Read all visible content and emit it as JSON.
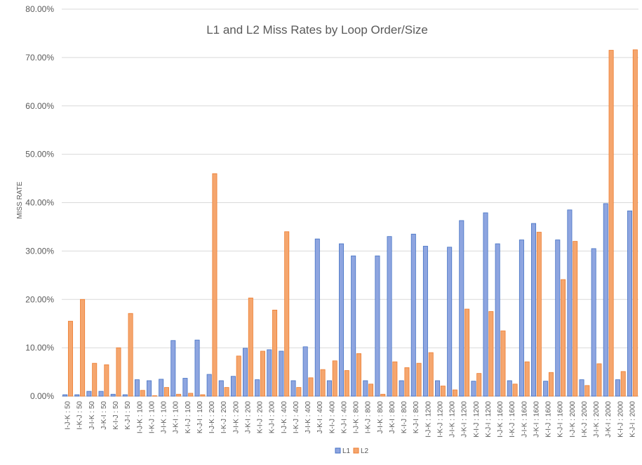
{
  "chart_data": {
    "type": "bar",
    "title": "L1 and L2 Miss Rates by Loop Order/Size",
    "xlabel": "",
    "ylabel": "MISS RATE",
    "ylim": [
      0,
      0.8
    ],
    "y_tick_labels": [
      "0.00%",
      "10.00%",
      "20.00%",
      "30.00%",
      "40.00%",
      "50.00%",
      "60.00%",
      "70.00%",
      "80.00%"
    ],
    "grid": "horizontal",
    "legend_position": "bottom",
    "categories": [
      "I-J-K : 50",
      "I-K-J : 50",
      "J-I-K : 50",
      "J-K-I : 50",
      "K-I-J : 50",
      "K-J-I : 50",
      "I-J-K : 100",
      "I-K-J : 100",
      "J-I-K : 100",
      "J-K-I : 100",
      "K-I-J : 100",
      "K-J-I : 100",
      "I-J-K : 200",
      "I-K-J : 200",
      "J-I-K : 200",
      "J-K-I : 200",
      "K-I-J : 200",
      "K-J-I : 200",
      "I-J-K : 400",
      "I-K-J : 400",
      "J-I-K : 400",
      "J-K-I : 400",
      "K-I-J : 400",
      "K-J-I : 400",
      "I-J-K : 800",
      "I-K-J : 800",
      "J-I-K : 800",
      "J-K-I : 800",
      "K-I-J : 800",
      "K-J-I : 800",
      "I-J-K : 1200",
      "I-K-J : 1200",
      "J-I-K : 1200",
      "J-K-I : 1200",
      "K-I-J : 1200",
      "K-J-I : 1200",
      "I-J-K : 1600",
      "I-K-J : 1600",
      "J-I-K : 1600",
      "J-K-I : 1600",
      "K-I-J : 1600",
      "K-J-I : 1600",
      "I-J-K : 2000",
      "I-K-J : 2000",
      "J-I-K : 2000",
      "J-K-I : 2000",
      "K-I-J : 2000",
      "K-J-I : 2000"
    ],
    "series": [
      {
        "name": "L1",
        "color": "#8ea5e0",
        "stroke": "#4472c4",
        "values": [
          0.003,
          0.003,
          0.01,
          0.01,
          0.004,
          0.003,
          0.034,
          0.032,
          0.035,
          0.115,
          0.037,
          0.116,
          0.045,
          0.032,
          0.041,
          0.099,
          0.034,
          0.096,
          0.093,
          0.032,
          0.102,
          0.325,
          0.032,
          0.315,
          0.29,
          0.032,
          0.29,
          0.33,
          0.032,
          0.335,
          0.31,
          0.032,
          0.308,
          0.363,
          0.031,
          0.379,
          0.315,
          0.032,
          0.323,
          0.357,
          0.031,
          0.323,
          0.385,
          0.034,
          0.305,
          0.398,
          0.034,
          0.383
        ]
      },
      {
        "name": "L2",
        "color": "#f5a66e",
        "stroke": "#ed7d31",
        "values": [
          0.155,
          0.2,
          0.068,
          0.065,
          0.1,
          0.171,
          0.012,
          0.001,
          0.018,
          0.004,
          0.006,
          0.003,
          0.46,
          0.018,
          0.083,
          0.203,
          0.093,
          0.178,
          0.34,
          0.018,
          0.038,
          0.055,
          0.073,
          0.053,
          0.088,
          0.025,
          0.004,
          0.071,
          0.059,
          0.068,
          0.09,
          0.021,
          0.013,
          0.18,
          0.047,
          0.175,
          0.135,
          0.025,
          0.071,
          0.339,
          0.049,
          0.241,
          0.32,
          0.022,
          0.067,
          0.715,
          0.051,
          0.716
        ]
      }
    ]
  }
}
